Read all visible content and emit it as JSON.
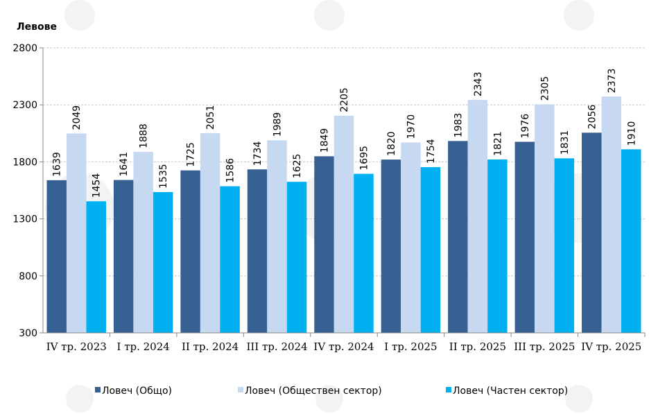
{
  "chart_data": {
    "type": "bar",
    "ylabel": "Левове",
    "ylim": [
      300,
      2800
    ],
    "yticks": [
      300,
      800,
      1300,
      1800,
      2300,
      2800
    ],
    "grid": true,
    "legend_position": "bottom",
    "categories": [
      "IV тр. 2023",
      "I тр. 2024",
      "II тр. 2024",
      "III тр. 2024",
      "IV тр. 2024",
      "I тр. 2025",
      "II тр. 2025",
      "III тр. 2025",
      "IV тр. 2025"
    ],
    "series": [
      {
        "name": "Ловеч (Общо)",
        "color": "#376092",
        "values": [
          1639,
          1641,
          1725,
          1734,
          1849,
          1820,
          1983,
          1976,
          2056
        ]
      },
      {
        "name": "Ловеч (Обществен сектор)",
        "color": "#c6d9f1",
        "values": [
          2049,
          1888,
          2051,
          1989,
          2205,
          1970,
          2343,
          2305,
          2373
        ]
      },
      {
        "name": "Ловеч (Частен сектор)",
        "color": "#00b0f0",
        "values": [
          1454,
          1535,
          1586,
          1625,
          1695,
          1754,
          1821,
          1831,
          1910
        ]
      }
    ]
  }
}
